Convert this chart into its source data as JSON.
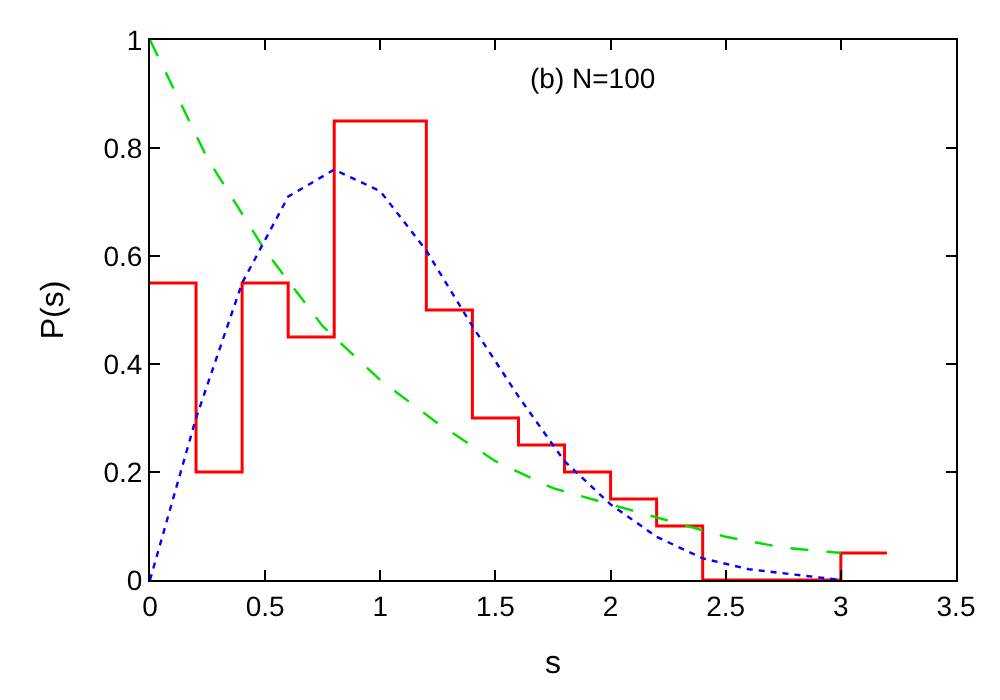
{
  "chart_data": {
    "type": "histogram",
    "xlabel": "s",
    "ylabel": "P(s)",
    "annotations": [
      "(b) N=100"
    ],
    "xlim": [
      0,
      3.5
    ],
    "xticks": [
      0,
      0.5,
      1,
      1.5,
      2,
      2.5,
      3,
      3.5
    ],
    "ylim": [
      0,
      1
    ],
    "yticks": [
      0,
      0.2,
      0.4,
      0.6,
      0.8,
      1
    ],
    "series": [
      {
        "color": "#ff0000",
        "line_style": "solid",
        "bins": [
          0,
          0.2,
          0.4,
          0.6,
          0.8,
          1.0,
          1.2,
          1.4,
          1.6,
          1.8,
          2.0,
          2.2,
          2.4,
          2.6,
          2.8,
          3.0,
          3.2
        ],
        "values": [
          0.55,
          0.2,
          0.55,
          0.45,
          0.85,
          0.85,
          0.5,
          0.3,
          0.25,
          0.2,
          0.15,
          0.1,
          0,
          0,
          0,
          0.05
        ]
      },
      {
        "type": "line",
        "color": "#00dd00",
        "line_style": "dashed",
        "x": [
          0,
          0.25,
          0.5,
          0.75,
          1,
          1.25,
          1.5,
          1.75,
          2,
          2.25,
          2.5,
          2.75,
          3
        ],
        "values": [
          1,
          0.78,
          0.61,
          0.47,
          0.37,
          0.29,
          0.22,
          0.17,
          0.14,
          0.11,
          0.08,
          0.06,
          0.05
        ]
      },
      {
        "type": "line",
        "color": "#0000ff",
        "line_style": "dotted",
        "x": [
          0,
          0.2,
          0.4,
          0.6,
          0.8,
          1.0,
          1.2,
          1.4,
          1.6,
          1.8,
          2.0,
          2.2,
          2.4,
          2.6,
          2.8,
          3.0
        ],
        "values": [
          0,
          0.3,
          0.55,
          0.71,
          0.76,
          0.72,
          0.61,
          0.47,
          0.34,
          0.22,
          0.14,
          0.08,
          0.04,
          0.02,
          0.01,
          0
        ]
      }
    ]
  }
}
